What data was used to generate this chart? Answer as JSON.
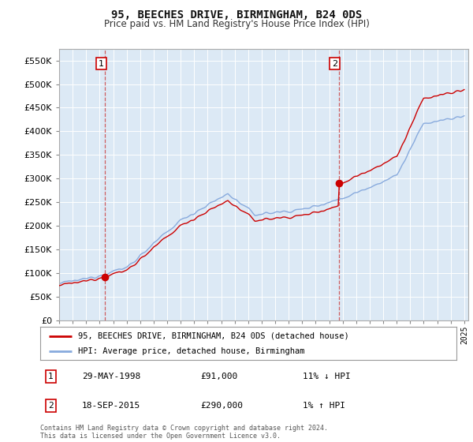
{
  "title": "95, BEECHES DRIVE, BIRMINGHAM, B24 0DS",
  "subtitle": "Price paid vs. HM Land Registry's House Price Index (HPI)",
  "ylim": [
    0,
    575000
  ],
  "yticks": [
    0,
    50000,
    100000,
    150000,
    200000,
    250000,
    300000,
    350000,
    400000,
    450000,
    500000,
    550000
  ],
  "bg_color": "#ffffff",
  "chart_bg_color": "#dce9f5",
  "grid_color": "#ffffff",
  "sale1": {
    "date_num": 1998.41,
    "price": 91000,
    "label": "1",
    "date_str": "29-MAY-1998"
  },
  "sale2": {
    "date_num": 2015.72,
    "price": 290000,
    "label": "2",
    "date_str": "18-SEP-2015"
  },
  "line_color_sale": "#cc0000",
  "line_color_hpi": "#88aadd",
  "marker_color_sale": "#cc0000",
  "dashed_color": "#cc4444",
  "legend_label_sale": "95, BEECHES DRIVE, BIRMINGHAM, B24 0DS (detached house)",
  "legend_label_hpi": "HPI: Average price, detached house, Birmingham",
  "footer": "Contains HM Land Registry data © Crown copyright and database right 2024.\nThis data is licensed under the Open Government Licence v3.0.",
  "xmin": 1995,
  "xmax": 2025.3,
  "table_rows": [
    {
      "num": "1",
      "date": "29-MAY-1998",
      "price": "£91,000",
      "hpi": "11% ↓ HPI"
    },
    {
      "num": "2",
      "date": "18-SEP-2015",
      "price": "£290,000",
      "hpi": "1% ↑ HPI"
    }
  ]
}
